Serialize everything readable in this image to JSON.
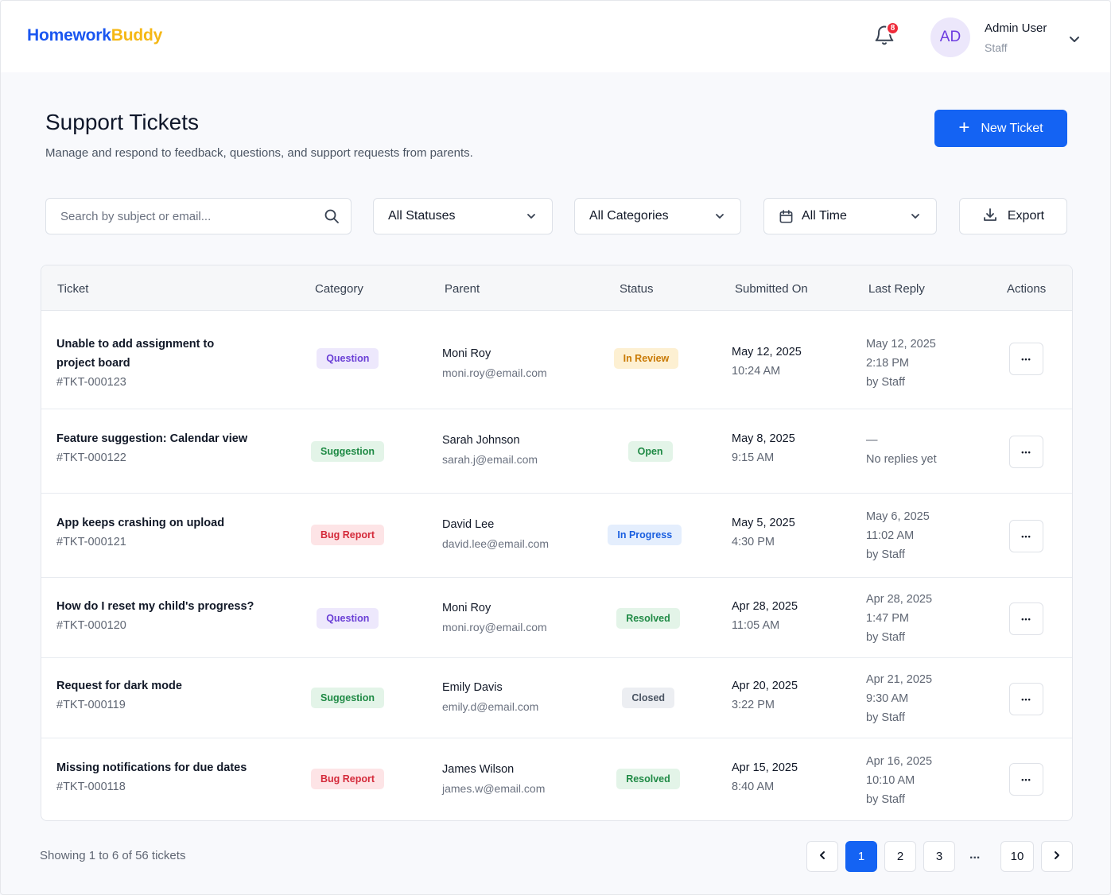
{
  "header": {
    "logo_part1": "Homework",
    "logo_part2": "Buddy",
    "notification_count": "8",
    "avatar_initials": "AD",
    "user_name": "Admin User",
    "user_role": "Staff"
  },
  "page": {
    "title": "Support Tickets",
    "subtitle": "Manage and respond to feedback, questions, and support requests from parents.",
    "new_ticket_label": "New Ticket"
  },
  "filters": {
    "search_placeholder": "Search by subject or email...",
    "status_value": "All Statuses",
    "category_value": "All Categories",
    "time_value": "All Time",
    "export_label": "Export"
  },
  "table": {
    "columns": [
      "Ticket",
      "Category",
      "Parent",
      "Status",
      "Submitted On",
      "Last Reply",
      "Actions"
    ],
    "rows": [
      {
        "subject": "Unable to add assignment to project board",
        "id": "#TKT-000123",
        "category": "Question",
        "parent_name": "Moni Roy",
        "parent_email": "moni.roy@email.com",
        "status": "In Review",
        "submitted_date": "May 12, 2025",
        "submitted_time": "10:24 AM",
        "reply_line1": "May 12, 2025",
        "reply_line2": "2:18 PM",
        "reply_line3": "by Staff"
      },
      {
        "subject": "Feature suggestion: Calendar view",
        "id": "#TKT-000122",
        "category": "Suggestion",
        "parent_name": "Sarah Johnson",
        "parent_email": "sarah.j@email.com",
        "status": "Open",
        "submitted_date": "May 8, 2025",
        "submitted_time": "9:15 AM",
        "reply_line1": "—",
        "reply_line2": "No replies yet",
        "reply_line3": ""
      },
      {
        "subject": "App keeps crashing on upload",
        "id": "#TKT-000121",
        "category": "Bug Report",
        "parent_name": "David Lee",
        "parent_email": "david.lee@email.com",
        "status": "In Progress",
        "submitted_date": "May 5, 2025",
        "submitted_time": "4:30 PM",
        "reply_line1": "May 6, 2025",
        "reply_line2": "11:02 AM",
        "reply_line3": "by Staff"
      },
      {
        "subject": "How do I reset my child's progress?",
        "id": "#TKT-000120",
        "category": "Question",
        "parent_name": "Moni Roy",
        "parent_email": "moni.roy@email.com",
        "status": "Resolved",
        "submitted_date": "Apr 28, 2025",
        "submitted_time": "11:05 AM",
        "reply_line1": "Apr 28, 2025",
        "reply_line2": "1:47 PM",
        "reply_line3": "by Staff"
      },
      {
        "subject": "Request for dark mode",
        "id": "#TKT-000119",
        "category": "Suggestion",
        "parent_name": "Emily Davis",
        "parent_email": "emily.d@email.com",
        "status": "Closed",
        "submitted_date": "Apr 20, 2025",
        "submitted_time": "3:22 PM",
        "reply_line1": "Apr 21, 2025",
        "reply_line2": "9:30 AM",
        "reply_line3": "by Staff"
      },
      {
        "subject": "Missing notifications for due dates",
        "id": "#TKT-000118",
        "category": "Bug Report",
        "parent_name": "James Wilson",
        "parent_email": "james.w@email.com",
        "status": "Resolved",
        "submitted_date": "Apr 15, 2025",
        "submitted_time": "8:40 AM",
        "reply_line1": "Apr 16, 2025",
        "reply_line2": "10:10 AM",
        "reply_line3": "by Staff"
      }
    ]
  },
  "badge_colors": {
    "Question": {
      "bg": "#ede8fc",
      "fg": "#6a3fd6"
    },
    "Suggestion": {
      "bg": "#e3f4e8",
      "fg": "#1f8a45"
    },
    "Bug Report": {
      "bg": "#fde4e6",
      "fg": "#d42a3a"
    },
    "In Review": {
      "bg": "#fdf0d2",
      "fg": "#c97a05"
    },
    "Open": {
      "bg": "#e3f4e8",
      "fg": "#1f8a45"
    },
    "In Progress": {
      "bg": "#e4eefd",
      "fg": "#1a5fe0"
    },
    "Resolved": {
      "bg": "#e3f4e8",
      "fg": "#1f8a45"
    },
    "Closed": {
      "bg": "#eceef2",
      "fg": "#4b5563"
    }
  },
  "footer": {
    "showing_text": "Showing 1 to 6 of 56 tickets",
    "pages": [
      "1",
      "2",
      "3"
    ],
    "ellipsis": "...",
    "last_page": "10",
    "current_page": "1"
  }
}
